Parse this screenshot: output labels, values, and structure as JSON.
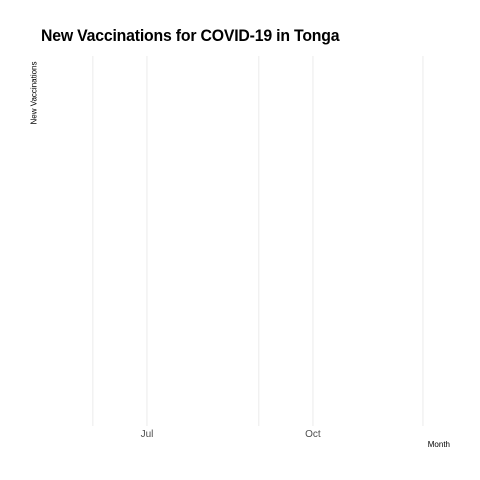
{
  "chart_data": {
    "type": "line",
    "title": "New Vaccinations for COVID-19 in Tonga",
    "xlabel": "Month",
    "ylabel": "New Vaccinations",
    "x_ticks": [
      "Jul",
      "Oct"
    ],
    "x_range": [
      "2021-05-16",
      "2021-12-16"
    ],
    "gridlines": [
      "2021-06-01",
      "2021-07-01",
      "2021-09-01",
      "2021-10-01",
      "2021-12-01"
    ],
    "grid": true,
    "legend": "none",
    "series": []
  }
}
